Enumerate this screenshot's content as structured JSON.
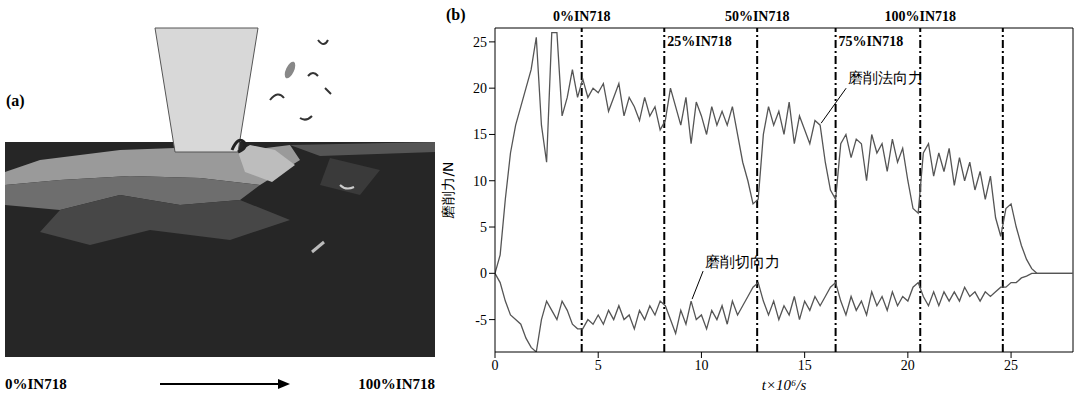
{
  "diagram": {
    "panel_label": "(a)",
    "gradient_start": "0%IN718",
    "gradient_end": "100%IN718"
  },
  "chart_data": {
    "type": "line",
    "panel_label": "(b)",
    "x_label": "t×10⁶/s",
    "y_label": "磨削力/N",
    "x": [
      0,
      0.25,
      0.5,
      0.75,
      1,
      1.25,
      1.5,
      1.75,
      2,
      2.25,
      2.5,
      2.75,
      3,
      3.25,
      3.5,
      3.75,
      4,
      4.25,
      4.5,
      4.75,
      5,
      5.25,
      5.5,
      5.75,
      6,
      6.25,
      6.5,
      6.75,
      7,
      7.25,
      7.5,
      7.75,
      8,
      8.25,
      8.5,
      8.75,
      9,
      9.25,
      9.5,
      9.75,
      10,
      10.25,
      10.5,
      10.75,
      11,
      11.25,
      11.5,
      11.75,
      12,
      12.25,
      12.5,
      12.75,
      13,
      13.25,
      13.5,
      13.75,
      14,
      14.25,
      14.5,
      14.75,
      15,
      15.25,
      15.5,
      15.75,
      16,
      16.25,
      16.5,
      16.75,
      17,
      17.25,
      17.5,
      17.75,
      18,
      18.25,
      18.5,
      18.75,
      19,
      19.25,
      19.5,
      19.75,
      20,
      20.25,
      20.5,
      20.75,
      21,
      21.25,
      21.5,
      21.75,
      22,
      22.25,
      22.5,
      22.75,
      23,
      23.25,
      23.5,
      23.75,
      24,
      24.25,
      24.5,
      24.75,
      25,
      25.25,
      25.5,
      25.75,
      26,
      26.25,
      26.5,
      26.75,
      27,
      27.25,
      27.5,
      27.75,
      28
    ],
    "xlim": [
      0,
      28
    ],
    "xticks": [
      0,
      5,
      10,
      15,
      20,
      25
    ],
    "ylim": [
      -8.5,
      26.5
    ],
    "yticks": [
      -5,
      0,
      5,
      10,
      15,
      20,
      25
    ],
    "grid": false,
    "series": [
      {
        "name": "磨削法向力",
        "color": "#555555",
        "values": [
          0,
          2,
          8,
          13,
          16,
          18,
          20,
          22,
          25.5,
          16,
          12,
          26,
          26,
          17,
          19,
          22,
          19,
          21,
          19,
          20,
          19.5,
          20.5,
          17.5,
          19,
          20.5,
          17,
          19,
          18,
          16.5,
          19,
          17,
          18,
          15.5,
          16.5,
          20,
          18,
          16,
          19,
          14,
          18.5,
          17,
          15,
          18,
          16,
          17.5,
          16,
          18,
          15,
          12,
          10,
          7.5,
          8,
          15,
          18,
          16,
          17.5,
          15,
          18.5,
          14,
          17,
          15.5,
          14,
          16.5,
          16,
          12,
          9,
          8,
          14,
          15,
          12.5,
          14.5,
          14,
          10,
          15,
          13,
          14,
          11,
          14.5,
          12,
          13.5,
          10,
          7,
          6.5,
          13,
          14,
          10.5,
          13,
          11,
          13.5,
          9.5,
          12.5,
          10,
          12,
          9,
          11,
          8,
          10.5,
          6,
          4,
          7,
          7.5,
          5,
          3,
          1.5,
          0.5,
          0,
          0,
          0,
          0,
          0,
          0,
          0,
          0
        ]
      },
      {
        "name": "磨削切向力",
        "color": "#555555",
        "values": [
          0,
          -1,
          -3,
          -4.5,
          -5,
          -5.5,
          -7,
          -8,
          -8.5,
          -5,
          -3,
          -4,
          -5,
          -3,
          -4,
          -5.5,
          -6,
          -6,
          -5,
          -5.5,
          -4.5,
          -5.5,
          -4,
          -5,
          -3.5,
          -5,
          -4.5,
          -6,
          -4,
          -5,
          -3.5,
          -4.5,
          -3,
          -3.5,
          -5,
          -6.5,
          -4,
          -5.5,
          -3,
          -5,
          -4.5,
          -6,
          -4,
          -5,
          -3.5,
          -5.5,
          -3,
          -4.5,
          -3.5,
          -2.5,
          -1.5,
          -1,
          -3,
          -4.5,
          -3,
          -5,
          -3.5,
          -4.5,
          -2.5,
          -5,
          -3,
          -4,
          -2.5,
          -3.5,
          -2.5,
          -1.5,
          -1,
          -3,
          -4.5,
          -2.5,
          -4,
          -3,
          -4.5,
          -2,
          -3.5,
          -2.5,
          -4,
          -2,
          -3.5,
          -2.5,
          -3,
          -1.5,
          -1,
          -2.5,
          -3.5,
          -2,
          -3.5,
          -2,
          -3,
          -2,
          -3,
          -1.5,
          -2.5,
          -2,
          -3,
          -2,
          -2.5,
          -2,
          -1.5,
          -1.5,
          -1,
          -1,
          -0.5,
          -0.3,
          0,
          0,
          0,
          0,
          0,
          0,
          0,
          0,
          0
        ]
      }
    ],
    "markers": [
      {
        "x": 4.2,
        "label": "0%IN718"
      },
      {
        "x": 8.2,
        "label": "25%IN718"
      },
      {
        "x": 12.7,
        "label": "50%IN718"
      },
      {
        "x": 16.5,
        "label": "75%IN718"
      },
      {
        "x": 20.6,
        "label": "100%IN718"
      },
      {
        "x": 24.6
      }
    ]
  }
}
